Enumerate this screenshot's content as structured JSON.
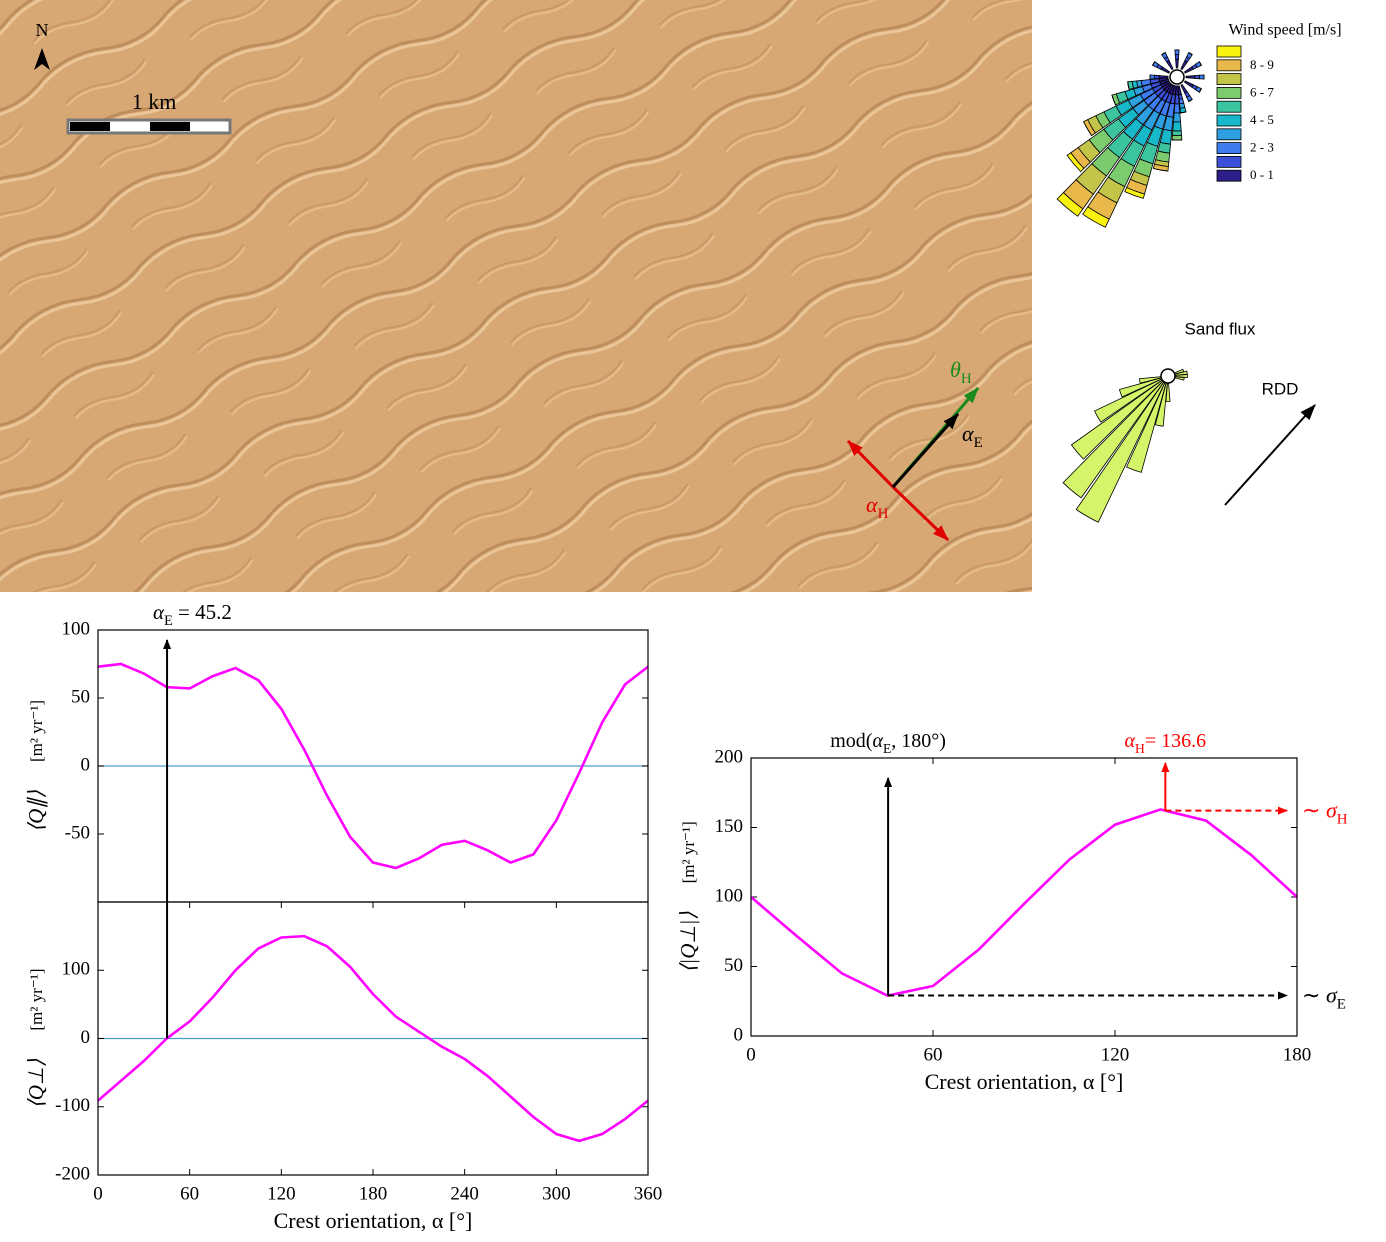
{
  "image": {
    "north": "N",
    "scale_bar": "1 km",
    "theta_H": [
      "θ",
      {
        "sub": "H"
      }
    ],
    "alpha_E": [
      "α",
      {
        "sub": "E"
      }
    ],
    "alpha_H": [
      "α",
      {
        "sub": "H"
      }
    ]
  },
  "chart_data": [
    {
      "type": "line",
      "ylabel": "⟨Q∥⟩",
      "yunits": "[m² yr⁻¹]",
      "x": [
        0,
        15,
        30,
        45,
        60,
        75,
        90,
        105,
        120,
        135,
        150,
        165,
        180,
        195,
        210,
        225,
        240,
        255,
        270,
        285,
        300,
        315,
        330,
        345,
        360
      ],
      "values": [
        73,
        75,
        68,
        58,
        57,
        66,
        72,
        63,
        42,
        12,
        -22,
        -52,
        -71,
        -75,
        -68,
        -58,
        -55,
        -62,
        -71,
        -65,
        -40,
        -5,
        32,
        60,
        73
      ],
      "color": "#ff00ff",
      "zero_line": "#4a9fd0",
      "xlim": [
        0,
        360
      ],
      "ylim": [
        -100,
        100
      ],
      "yticks": [
        -50,
        0,
        50,
        100
      ],
      "annotations": [
        {
          "label": [
            "α",
            {
              "sub": "E"
            },
            " = 45.2"
          ],
          "x": 45.2,
          "color": "#000000"
        }
      ]
    },
    {
      "type": "line",
      "ylabel": "⟨Q⊥⟩",
      "yunits": "[m² yr⁻¹]",
      "xlabel": "Crest orientation, α [°]",
      "x": [
        0,
        15,
        30,
        45,
        60,
        75,
        90,
        105,
        120,
        135,
        150,
        165,
        180,
        195,
        210,
        225,
        240,
        255,
        270,
        285,
        300,
        315,
        330,
        345,
        360
      ],
      "values": [
        -91,
        -62,
        -33,
        0,
        25,
        60,
        100,
        132,
        148,
        150,
        135,
        105,
        65,
        32,
        10,
        -12,
        -30,
        -55,
        -85,
        -115,
        -140,
        -150,
        -140,
        -118,
        -91
      ],
      "color": "#ff00ff",
      "zero_line": "#4a9fd0",
      "xlim": [
        0,
        360
      ],
      "xticks": [
        0,
        60,
        120,
        180,
        240,
        300,
        360
      ],
      "ylim": [
        -200,
        200
      ],
      "yticks": [
        -200,
        -100,
        0,
        100
      ]
    },
    {
      "type": "line",
      "ylabel": "⟨|Q⊥|⟩",
      "yunits": "[m² yr⁻¹]",
      "xlabel": "Crest orientation, α [°]",
      "x": [
        0,
        15,
        30,
        45,
        60,
        75,
        90,
        105,
        120,
        135,
        150,
        165,
        180
      ],
      "values": [
        100,
        72,
        45,
        29,
        36,
        62,
        95,
        127,
        152,
        163,
        155,
        130,
        100
      ],
      "color": "#ff00ff",
      "xlim": [
        0,
        180
      ],
      "xticks": [
        0,
        60,
        120,
        180
      ],
      "ylim": [
        0,
        200
      ],
      "yticks": [
        0,
        50,
        100,
        150,
        200
      ],
      "annotations": [
        {
          "label": [
            "mod(",
            "α",
            {
              "sub": "E"
            },
            ", 180°)"
          ],
          "x": 45.2,
          "color": "#000000",
          "side_label": [
            "∼ ",
            "σ",
            {
              "sub": "E"
            }
          ]
        },
        {
          "label": [
            "α",
            {
              "sub": "H"
            },
            "= 136.6"
          ],
          "x": 136.6,
          "color": "#ff0000",
          "side_label": [
            "∼ ",
            "σ",
            {
              "sub": "H"
            }
          ]
        }
      ]
    },
    {
      "type": "wind_rose",
      "title": "Wind speed [m/s]",
      "classes": [
        "0 - 1",
        null,
        "2 - 3",
        null,
        "4 - 5",
        null,
        "6 - 7",
        null,
        "8 - 9",
        null
      ],
      "colors": [
        "#2c1f8a",
        "#3b4fd8",
        "#3e7cf0",
        "#2e9fe0",
        "#17b8c9",
        "#3cc4a0",
        "#7ccb6e",
        "#c2c54a",
        "#e8b84a",
        "#f9f20f"
      ],
      "directions": [
        0,
        30,
        60,
        90,
        120,
        150,
        170,
        180,
        190,
        200,
        210,
        220,
        230,
        240,
        250,
        260,
        270,
        300,
        330
      ],
      "values": [
        [
          2,
          1,
          1,
          0,
          0,
          0,
          0,
          0,
          0,
          0
        ],
        [
          2,
          1,
          1,
          0,
          0,
          0,
          0,
          0,
          0,
          0
        ],
        [
          2,
          1,
          1,
          0,
          0,
          0,
          0,
          0,
          0,
          0
        ],
        [
          2,
          1,
          1,
          0,
          0,
          0,
          0,
          0,
          0,
          0
        ],
        [
          2,
          1,
          1,
          0,
          0,
          0,
          0,
          0,
          0,
          0
        ],
        [
          2,
          1,
          1,
          0,
          0,
          0,
          0,
          0,
          0,
          0
        ],
        [
          2,
          1,
          1,
          1,
          1,
          0,
          0,
          0,
          0,
          0
        ],
        [
          2,
          2,
          2,
          2,
          2,
          1,
          1,
          0,
          0,
          0
        ],
        [
          2,
          2,
          3,
          3,
          3,
          2,
          2,
          1,
          1,
          0
        ],
        [
          2,
          2,
          3,
          3,
          4,
          4,
          3,
          2,
          2,
          1
        ],
        [
          2,
          2,
          3,
          4,
          4,
          5,
          5,
          4,
          4,
          2
        ],
        [
          2,
          2,
          3,
          4,
          4,
          5,
          5,
          5,
          4,
          2
        ],
        [
          2,
          2,
          3,
          3,
          4,
          4,
          4,
          3,
          2,
          1
        ],
        [
          2,
          2,
          3,
          3,
          3,
          3,
          2,
          2,
          1,
          0
        ],
        [
          2,
          2,
          2,
          2,
          2,
          2,
          1,
          0,
          0,
          0
        ],
        [
          2,
          2,
          2,
          1,
          1,
          1,
          0,
          0,
          0,
          0
        ],
        [
          2,
          1,
          1,
          0,
          0,
          0,
          0,
          0,
          0,
          0
        ],
        [
          2,
          1,
          1,
          0,
          0,
          0,
          0,
          0,
          0,
          0
        ],
        [
          2,
          1,
          1,
          0,
          0,
          0,
          0,
          0,
          0,
          0
        ]
      ]
    },
    {
      "type": "flux_rose",
      "title": "Sand flux",
      "rdd_label": "RDD",
      "color": "#d4f56a",
      "directions": [
        70,
        80,
        90,
        100,
        180,
        190,
        200,
        210,
        220,
        230,
        240,
        250,
        260
      ],
      "values": [
        6,
        8,
        8,
        6,
        12,
        28,
        60,
        100,
        92,
        72,
        48,
        28,
        14
      ]
    }
  ]
}
